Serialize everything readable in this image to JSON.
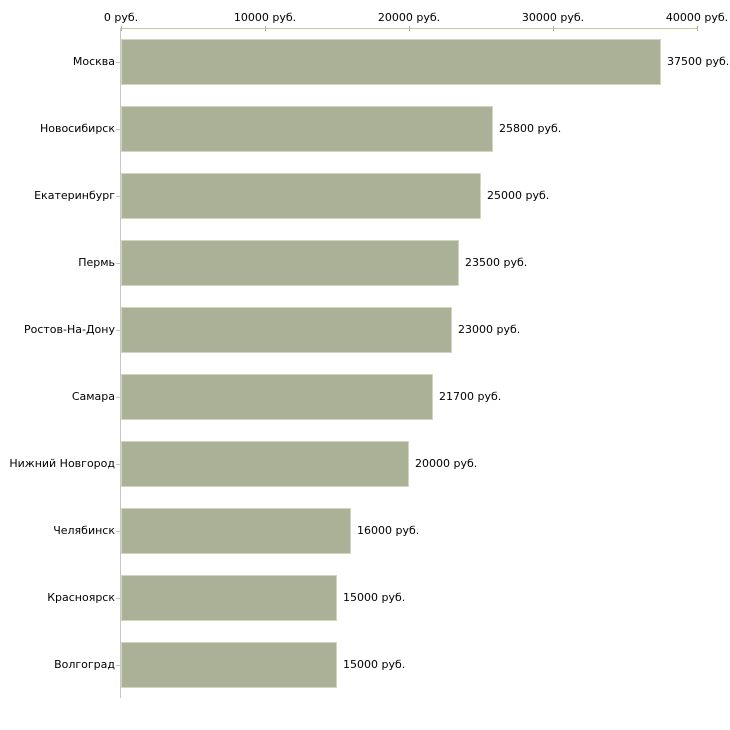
{
  "chart_data": {
    "type": "bar",
    "orientation": "horizontal",
    "title": "",
    "xlabel": "",
    "ylabel": "",
    "unit": "руб.",
    "categories": [
      "Москва",
      "Новосибирск",
      "Екатеринбург",
      "Пермь",
      "Ростов-На-Дону",
      "Самара",
      "Нижний Новгород",
      "Челябинск",
      "Красноярск",
      "Волгоград"
    ],
    "values": [
      37500,
      25800,
      25000,
      23500,
      23000,
      21700,
      20000,
      16000,
      15000,
      15000
    ],
    "value_labels": [
      "37500 руб.",
      "25800 руб.",
      "25000 руб.",
      "23500 руб.",
      "23000 руб.",
      "21700 руб.",
      "20000 руб.",
      "16000 руб.",
      "15000 руб.",
      "15000 руб."
    ],
    "x_axis": {
      "position": "top",
      "min": 0,
      "max": 40000,
      "ticks": [
        {
          "value": 0,
          "label": "0 руб."
        },
        {
          "value": 10000,
          "label": "10000 руб."
        },
        {
          "value": 20000,
          "label": "20000 руб."
        },
        {
          "value": 30000,
          "label": "30000 руб."
        },
        {
          "value": 40000,
          "label": "40000 руб."
        }
      ]
    },
    "legend": "none",
    "grid": "off",
    "colors": {
      "bar": "#abb196",
      "axis_line": "#c9c9a3",
      "tick": "#b5b58f",
      "category_axis": "#c6c6c6",
      "text": "#000000",
      "background": "#ffffff"
    }
  }
}
